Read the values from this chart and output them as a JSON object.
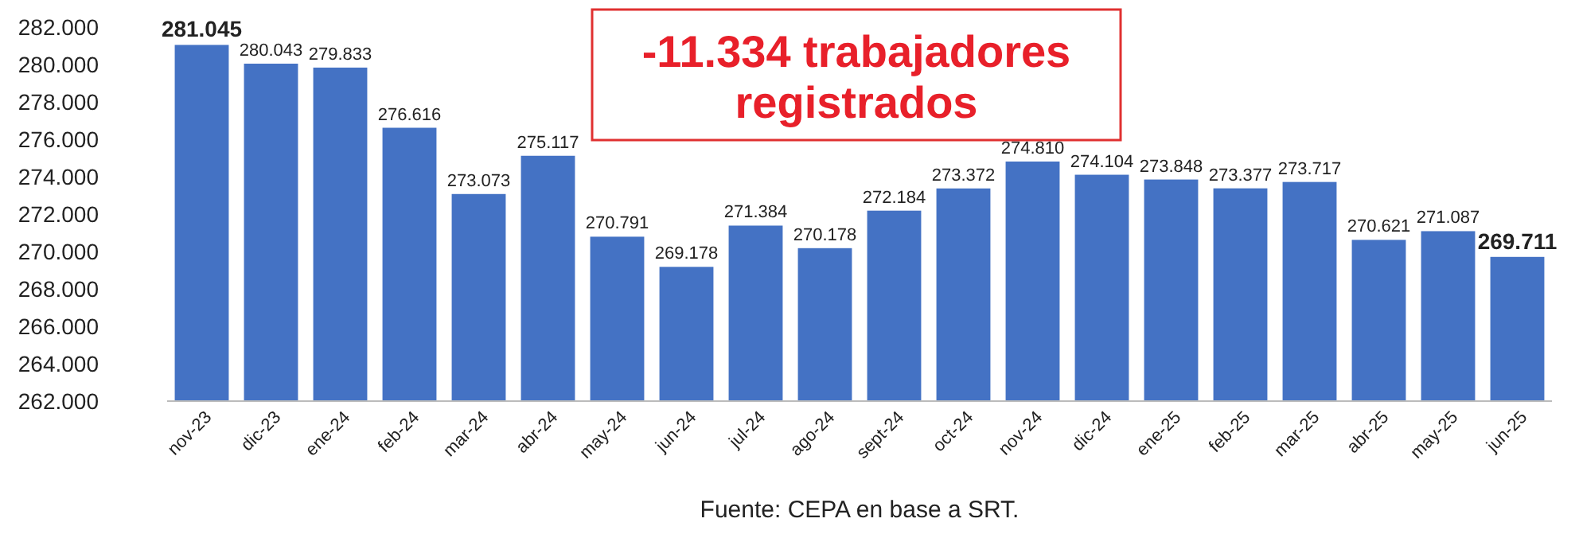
{
  "chart_data": {
    "type": "bar",
    "categories": [
      "nov-23",
      "dic-23",
      "ene-24",
      "feb-24",
      "mar-24",
      "abr-24",
      "may-24",
      "jun-24",
      "jul-24",
      "ago-24",
      "sept-24",
      "oct-24",
      "nov-24",
      "dic-24",
      "ene-25",
      "feb-25",
      "mar-25",
      "abr-25",
      "may-25",
      "jun-25"
    ],
    "values": [
      281045,
      280043,
      279833,
      276616,
      273073,
      275117,
      270791,
      269178,
      271384,
      270178,
      272184,
      273372,
      274810,
      274104,
      273848,
      273377,
      273717,
      270621,
      271087,
      269711
    ],
    "value_labels": [
      "281.045",
      "280.043",
      "279.833",
      "276.616",
      "273.073",
      "275.117",
      "270.791",
      "269.178",
      "271.384",
      "270.178",
      "272.184",
      "273.372",
      "274.810",
      "274.104",
      "273.848",
      "273.377",
      "273.717",
      "270.621",
      "271.087",
      "269.711"
    ],
    "color": "#4472c4",
    "ylim": [
      262000,
      282000
    ],
    "yticks": [
      {
        "value": 262000,
        "label": "262.000"
      },
      {
        "value": 264000,
        "label": "264.000"
      },
      {
        "value": 266000,
        "label": "266.000"
      },
      {
        "value": 268000,
        "label": "268.000"
      },
      {
        "value": 270000,
        "label": "270.000"
      },
      {
        "value": 272000,
        "label": "272.000"
      },
      {
        "value": 274000,
        "label": "274.000"
      },
      {
        "value": 276000,
        "label": "276.000"
      },
      {
        "value": 278000,
        "label": "278.000"
      },
      {
        "value": 280000,
        "label": "280.000"
      },
      {
        "value": 282000,
        "label": "282.000"
      }
    ],
    "annotations": [
      "-11.334 trabajadores registrados",
      "Fuente: CEPA en base a SRT."
    ],
    "grid": false
  }
}
